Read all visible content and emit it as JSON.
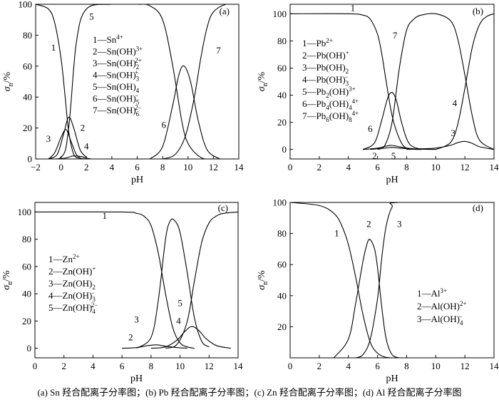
{
  "caption": "(a) Sn 羟合配离子分率图；(b) Pb 羟合配离子分率图；(c) Zn 羟合配离子分率图；(d) Al 羟合配离子分率图",
  "chart_data": [
    {
      "panel": "(a)",
      "type": "line",
      "xlabel": "pH",
      "ylabel_main": "σ",
      "ylabel_sub": "n",
      "ylabel_unit": "/%",
      "xlim": [
        -2,
        14
      ],
      "ylim": [
        0,
        100
      ],
      "xticks": [
        -2,
        0,
        2,
        4,
        6,
        8,
        10,
        12,
        14
      ],
      "yticks": [
        0,
        20,
        40,
        60,
        80,
        100
      ],
      "legend": [
        {
          "n": "1",
          "sp": "Sn",
          "sup": "4+",
          "sub": ""
        },
        {
          "n": "2",
          "sp": "Sn(OH)",
          "sup": "3+",
          "sub": ""
        },
        {
          "n": "3",
          "sp": "Sn(OH)",
          "sup": "2+",
          "sub": "2"
        },
        {
          "n": "4",
          "sp": "Sn(OH)",
          "sup": "+",
          "sub": "3"
        },
        {
          "n": "5",
          "sp": "Sn(OH)",
          "sup": "",
          "sub": "4"
        },
        {
          "n": "6",
          "sp": "Sn(OH)",
          "sup": "−",
          "sub": "5"
        },
        {
          "n": "7",
          "sp": "Sn(OH)",
          "sup": "2−",
          "sub": "6"
        }
      ],
      "series": [
        {
          "name": "1",
          "x": [
            -2,
            -1,
            -0.5,
            0,
            0.3,
            0.6,
            1,
            1.5,
            2
          ],
          "y": [
            100,
            97,
            88,
            65,
            42,
            18,
            3,
            0.5,
            0
          ]
        },
        {
          "name": "2",
          "x": [
            -1,
            -0.3,
            0.2,
            0.6,
            1.0,
            1.5,
            2.0
          ],
          "y": [
            0,
            3,
            16,
            27,
            20,
            6,
            1
          ]
        },
        {
          "name": "3",
          "x": [
            -1,
            -0.5,
            0,
            0.4,
            0.8,
            1.2,
            1.6
          ],
          "y": [
            0,
            4,
            14,
            19,
            11,
            3,
            0
          ]
        },
        {
          "name": "4",
          "x": [
            -0.5,
            0.3,
            1.0,
            1.6,
            2.0,
            2.4
          ],
          "y": [
            0,
            0.5,
            2,
            1.5,
            0.5,
            0
          ]
        },
        {
          "name": "5",
          "x": [
            -2,
            0,
            0.6,
            1.2,
            2,
            4,
            6,
            7,
            8,
            8.8,
            9.5,
            10,
            11,
            12,
            14
          ],
          "y": [
            0,
            1,
            20,
            75,
            97,
            100,
            100,
            99,
            90,
            60,
            25,
            10,
            1,
            0,
            0
          ]
        },
        {
          "name": "6",
          "x": [
            7,
            8,
            8.8,
            9.3,
            9.7,
            10.2,
            10.8,
            11.5,
            12.5
          ],
          "y": [
            0,
            8,
            35,
            55,
            60,
            50,
            25,
            6,
            0
          ]
        },
        {
          "name": "7",
          "x": [
            8,
            9,
            9.8,
            10.5,
            11,
            11.5,
            12,
            13,
            14
          ],
          "y": [
            0,
            3,
            15,
            40,
            65,
            85,
            95,
            100,
            100
          ]
        }
      ],
      "labels": [
        {
          "t": "1",
          "x": -0.6,
          "y": 72
        },
        {
          "t": "2",
          "x": 1.7,
          "y": 20
        },
        {
          "t": "3",
          "x": -1.0,
          "y": 13
        },
        {
          "t": "4",
          "x": 2.0,
          "y": 8
        },
        {
          "t": "5",
          "x": 2.4,
          "y": 92
        },
        {
          "t": "6",
          "x": 8.1,
          "y": 22
        },
        {
          "t": "7",
          "x": 12.4,
          "y": 70
        }
      ]
    },
    {
      "panel": "(b)",
      "type": "line",
      "xlabel": "pH",
      "ylabel_main": "σ",
      "ylabel_sub": "n",
      "ylabel_unit": "/%",
      "xlim": [
        0,
        14
      ],
      "ylim": [
        -7,
        107
      ],
      "xticks": [
        0,
        2,
        4,
        6,
        8,
        10,
        12,
        14
      ],
      "yticks": [
        0,
        20,
        40,
        60,
        80,
        100
      ],
      "legend": [
        {
          "n": "1",
          "sp": "Pb",
          "sup": "2+",
          "sub": ""
        },
        {
          "n": "2",
          "sp": "Pb(OH)",
          "sup": "+",
          "sub": ""
        },
        {
          "n": "3",
          "sp": "Pb(OH)",
          "sup": "",
          "sub": "2"
        },
        {
          "n": "4",
          "sp": "Pb(OH)",
          "sup": "−",
          "sub": "3"
        },
        {
          "n": "5",
          "sp": "Pb",
          "sub": "2",
          "tail": "(OH)",
          "sup": "3+"
        },
        {
          "n": "6",
          "sp": "Pb",
          "sub": "4",
          "tail": "(OH)",
          "sub2": "4",
          "sup": "4+"
        },
        {
          "n": "7",
          "sp": "Pb",
          "sub": "6",
          "tail": "(OH)",
          "sub2": "8",
          "sup": "4+"
        }
      ],
      "series": [
        {
          "name": "1",
          "x": [
            0,
            4,
            5,
            5.5,
            6,
            6.3,
            6.6,
            7,
            7.5,
            8,
            9
          ],
          "y": [
            100,
            100,
            99,
            96,
            85,
            70,
            50,
            25,
            8,
            1,
            0
          ]
        },
        {
          "name": "2",
          "x": [
            5,
            6,
            6.6,
            7,
            7.5,
            8,
            9
          ],
          "y": [
            0,
            1,
            2.5,
            3,
            2,
            1,
            0
          ]
        },
        {
          "name": "3",
          "x": [
            8,
            9,
            10,
            11,
            11.5,
            12,
            12.5,
            13,
            14
          ],
          "y": [
            0,
            0.5,
            1,
            3,
            5,
            6,
            4.5,
            2,
            0
          ]
        },
        {
          "name": "4",
          "x": [
            10,
            11,
            11.5,
            12,
            12.5,
            13,
            13.5,
            14
          ],
          "y": [
            0,
            5,
            18,
            45,
            75,
            92,
            98,
            100
          ]
        },
        {
          "name": "5",
          "x": [
            5.5,
            6.5,
            7,
            7.5,
            8.5,
            10
          ],
          "y": [
            0,
            1,
            1.5,
            1,
            0.3,
            0
          ]
        },
        {
          "name": "6",
          "x": [
            5,
            5.8,
            6.3,
            6.7,
            7.0,
            7.3,
            7.7,
            8.2,
            9
          ],
          "y": [
            0,
            5,
            22,
            38,
            42,
            36,
            18,
            4,
            0
          ]
        },
        {
          "name": "7",
          "x": [
            6,
            6.5,
            7,
            7.5,
            8,
            8.5,
            9,
            10,
            11,
            11.5,
            12,
            12.5,
            13,
            14
          ],
          "y": [
            0,
            3,
            20,
            60,
            88,
            96,
            99,
            100,
            95,
            82,
            55,
            25,
            7,
            0
          ]
        }
      ],
      "labels": [
        {
          "t": "1",
          "x": 4.3,
          "y": 104
        },
        {
          "t": "2",
          "x": 5.8,
          "y": -5
        },
        {
          "t": "3",
          "x": 11.2,
          "y": 12
        },
        {
          "t": "4",
          "x": 11.3,
          "y": 34
        },
        {
          "t": "5",
          "x": 7.1,
          "y": -5
        },
        {
          "t": "6",
          "x": 5.5,
          "y": 15
        },
        {
          "t": "7",
          "x": 7.2,
          "y": 84
        }
      ]
    },
    {
      "panel": "(c)",
      "type": "line",
      "xlabel": "pH",
      "ylabel_main": "σ",
      "ylabel_sub": "n",
      "ylabel_unit": "/%",
      "xlim": [
        0,
        14
      ],
      "ylim": [
        -7,
        107
      ],
      "xticks": [
        0,
        2,
        4,
        6,
        8,
        10,
        12,
        14
      ],
      "yticks": [
        0,
        20,
        40,
        60,
        80,
        100
      ],
      "legend": [
        {
          "n": "1",
          "sp": "Zn",
          "sup": "2+",
          "sub": ""
        },
        {
          "n": "2",
          "sp": "Zn(OH)",
          "sup": "+",
          "sub": ""
        },
        {
          "n": "3",
          "sp": "Zn(OH)",
          "sup": "",
          "sub": "2"
        },
        {
          "n": "4",
          "sp": "Zn(OH)",
          "sup": "−",
          "sub": "3"
        },
        {
          "n": "5",
          "sp": "Zn(OH)",
          "sup": "2−",
          "sub": "4"
        }
      ],
      "series": [
        {
          "name": "1",
          "x": [
            0,
            6,
            7,
            7.5,
            8,
            8.5,
            9,
            9.5,
            10,
            10.5,
            11
          ],
          "y": [
            100,
            100,
            99,
            97,
            90,
            70,
            40,
            15,
            4,
            1,
            0
          ]
        },
        {
          "name": "2",
          "x": [
            6,
            7,
            7.8,
            8.4,
            9,
            9.8,
            10.5
          ],
          "y": [
            0,
            0.5,
            2,
            2.5,
            1.5,
            0.5,
            0
          ]
        },
        {
          "name": "3",
          "x": [
            7,
            8,
            8.5,
            9,
            9.3,
            9.6,
            10,
            10.5,
            11,
            11.5,
            12
          ],
          "y": [
            0,
            8,
            35,
            80,
            93,
            94,
            85,
            55,
            22,
            5,
            1
          ]
        },
        {
          "name": "4",
          "x": [
            8,
            9,
            9.8,
            10.3,
            10.8,
            11.3,
            11.8,
            12.5,
            13.5
          ],
          "y": [
            0,
            1,
            6,
            12,
            16,
            13,
            7,
            2,
            0
          ]
        },
        {
          "name": "5",
          "x": [
            9,
            9.8,
            10.5,
            11,
            11.5,
            12,
            12.5,
            13,
            14
          ],
          "y": [
            0,
            3,
            20,
            50,
            78,
            92,
            97,
            99,
            100
          ]
        }
      ],
      "labels": [
        {
          "t": "1",
          "x": 4.8,
          "y": 97
        },
        {
          "t": "2",
          "x": 6.6,
          "y": 8
        },
        {
          "t": "3",
          "x": 7.0,
          "y": 21
        },
        {
          "t": "4",
          "x": 9.9,
          "y": 20
        },
        {
          "t": "5",
          "x": 10.0,
          "y": 33
        }
      ]
    },
    {
      "panel": "(d)",
      "type": "line",
      "xlabel": "pH",
      "ylabel_main": "σ",
      "ylabel_sub": "n",
      "ylabel_unit": "/%",
      "xlim": [
        0,
        14
      ],
      "ylim": [
        0,
        100
      ],
      "xticks": [
        0,
        2,
        4,
        6,
        8,
        10,
        12,
        14
      ],
      "yticks": [
        20,
        40,
        60,
        80,
        100
      ],
      "legend": [
        {
          "n": "1",
          "sp": "Al",
          "sup": "3+",
          "sub": ""
        },
        {
          "n": "2",
          "sp": "Al(OH)",
          "sup": "2+",
          "sub": ""
        },
        {
          "n": "3",
          "sp": "Al(OH)",
          "sup": "−",
          "sub": "4"
        }
      ],
      "series": [
        {
          "name": "1",
          "x": [
            0,
            2,
            3,
            3.5,
            4,
            4.5,
            5,
            5.5,
            6,
            6.5,
            7
          ],
          "y": [
            100,
            98,
            93,
            86,
            73,
            52,
            28,
            10,
            3,
            0.5,
            0
          ]
        },
        {
          "name": "2",
          "x": [
            3,
            4,
            4.5,
            5,
            5.3,
            5.5,
            5.8,
            6,
            6.3,
            6.6,
            7,
            7.5
          ],
          "y": [
            0,
            12,
            35,
            62,
            74,
            76,
            70,
            58,
            32,
            12,
            2,
            0
          ]
        },
        {
          "name": "3",
          "x": [
            4.5,
            5,
            5.5,
            6,
            6.3,
            6.6,
            7,
            7.5,
            14
          ],
          "y": [
            0,
            2,
            12,
            38,
            65,
            85,
            97,
            100,
            100
          ]
        }
      ],
      "labels": [
        {
          "t": "1",
          "x": 3.2,
          "y": 80
        },
        {
          "t": "2",
          "x": 5.4,
          "y": 86
        },
        {
          "t": "3",
          "x": 7.5,
          "y": 86
        }
      ]
    }
  ]
}
